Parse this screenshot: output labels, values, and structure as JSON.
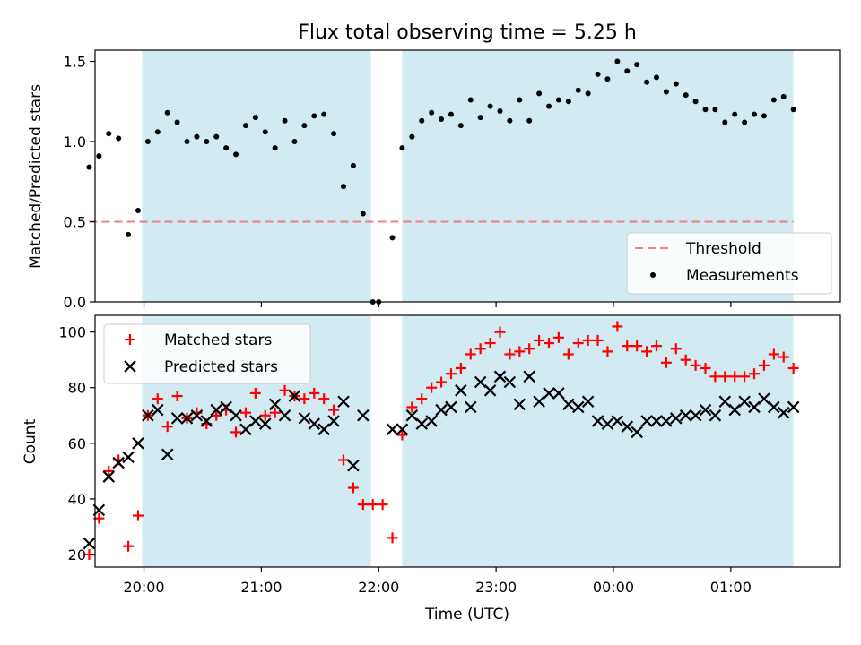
{
  "chart_data": [
    {
      "type": "scatter",
      "title": "Flux total observing time = 5.25 h",
      "xlabel": "",
      "ylabel": "Matched/Predicted stars",
      "ylim": [
        0,
        1.57
      ],
      "yticks": [
        "0.0",
        "0.5",
        "1.0",
        "1.5"
      ],
      "ytick_values": [
        0,
        0.5,
        1.0,
        1.5
      ],
      "xlim": [
        "19:35",
        "01:56"
      ],
      "legend_position": "lower-right",
      "shaded_regions": [
        [
          "19:59",
          "21:56"
        ],
        [
          "22:12",
          "01:32"
        ]
      ],
      "shade_color": "#add8e6",
      "threshold": {
        "name": "Threshold",
        "value": 0.5,
        "x": [
          "19:32",
          "01:32"
        ],
        "color": "#f08080"
      },
      "series": [
        {
          "name": "Measurements",
          "color": "#000000",
          "points": [
            [
              "19:32",
              0.84
            ],
            [
              "19:37",
              0.91
            ],
            [
              "19:42",
              1.05
            ],
            [
              "19:47",
              1.02
            ],
            [
              "19:52",
              0.42
            ],
            [
              "19:57",
              0.57
            ],
            [
              "20:02",
              1.0
            ],
            [
              "20:07",
              1.06
            ],
            [
              "20:12",
              1.18
            ],
            [
              "20:17",
              1.12
            ],
            [
              "20:22",
              1.0
            ],
            [
              "20:27",
              1.03
            ],
            [
              "20:32",
              1.0
            ],
            [
              "20:37",
              1.03
            ],
            [
              "20:42",
              0.96
            ],
            [
              "20:47",
              0.92
            ],
            [
              "20:52",
              1.1
            ],
            [
              "20:57",
              1.15
            ],
            [
              "21:02",
              1.06
            ],
            [
              "21:07",
              0.96
            ],
            [
              "21:12",
              1.13
            ],
            [
              "21:17",
              1.0
            ],
            [
              "21:22",
              1.1
            ],
            [
              "21:27",
              1.16
            ],
            [
              "21:32",
              1.17
            ],
            [
              "21:37",
              1.05
            ],
            [
              "21:42",
              0.72
            ],
            [
              "21:47",
              0.85
            ],
            [
              "21:52",
              0.55
            ],
            [
              "21:57",
              0.0
            ],
            [
              "22:00",
              0.0
            ],
            [
              "22:07",
              0.4
            ],
            [
              "22:12",
              0.96
            ],
            [
              "22:17",
              1.03
            ],
            [
              "22:22",
              1.13
            ],
            [
              "22:27",
              1.18
            ],
            [
              "22:32",
              1.14
            ],
            [
              "22:37",
              1.17
            ],
            [
              "22:42",
              1.1
            ],
            [
              "22:47",
              1.26
            ],
            [
              "22:52",
              1.15
            ],
            [
              "22:57",
              1.22
            ],
            [
              "23:02",
              1.19
            ],
            [
              "23:07",
              1.13
            ],
            [
              "23:12",
              1.26
            ],
            [
              "23:17",
              1.13
            ],
            [
              "23:22",
              1.3
            ],
            [
              "23:27",
              1.22
            ],
            [
              "23:32",
              1.26
            ],
            [
              "23:37",
              1.25
            ],
            [
              "23:42",
              1.32
            ],
            [
              "23:47",
              1.3
            ],
            [
              "23:52",
              1.42
            ],
            [
              "23:57",
              1.39
            ],
            [
              "00:02",
              1.5
            ],
            [
              "00:07",
              1.44
            ],
            [
              "00:12",
              1.48
            ],
            [
              "00:17",
              1.37
            ],
            [
              "00:22",
              1.4
            ],
            [
              "00:27",
              1.31
            ],
            [
              "00:32",
              1.36
            ],
            [
              "00:37",
              1.29
            ],
            [
              "00:42",
              1.25
            ],
            [
              "00:47",
              1.2
            ],
            [
              "00:52",
              1.2
            ],
            [
              "00:57",
              1.12
            ],
            [
              "01:02",
              1.17
            ],
            [
              "01:07",
              1.12
            ],
            [
              "01:12",
              1.17
            ],
            [
              "01:17",
              1.16
            ],
            [
              "01:22",
              1.26
            ],
            [
              "01:27",
              1.28
            ],
            [
              "01:32",
              1.2
            ]
          ]
        }
      ]
    },
    {
      "type": "scatter",
      "title": "",
      "xlabel": "Time (UTC)",
      "ylabel": "Count",
      "ylim": [
        15.5,
        106
      ],
      "yticks": [
        "20",
        "40",
        "60",
        "80",
        "100"
      ],
      "ytick_values": [
        20,
        40,
        60,
        80,
        100
      ],
      "xlim": [
        "19:35",
        "01:56"
      ],
      "xticks": [
        "20:00",
        "21:00",
        "22:00",
        "23:00",
        "00:00",
        "01:00"
      ],
      "legend_position": "upper-left",
      "shaded_regions": [
        [
          "19:59",
          "21:56"
        ],
        [
          "22:12",
          "01:32"
        ]
      ],
      "shade_color": "#add8e6",
      "series": [
        {
          "name": "Matched stars",
          "marker": "plus",
          "color": "#ff0000",
          "points": [
            [
              "19:32",
              20
            ],
            [
              "19:37",
              33
            ],
            [
              "19:42",
              50
            ],
            [
              "19:47",
              54
            ],
            [
              "19:52",
              23
            ],
            [
              "19:57",
              34
            ],
            [
              "20:02",
              70
            ],
            [
              "20:07",
              76
            ],
            [
              "20:12",
              66
            ],
            [
              "20:17",
              77
            ],
            [
              "20:22",
              69
            ],
            [
              "20:27",
              71
            ],
            [
              "20:32",
              67
            ],
            [
              "20:37",
              70
            ],
            [
              "20:42",
              72
            ],
            [
              "20:47",
              64
            ],
            [
              "20:52",
              71
            ],
            [
              "20:57",
              78
            ],
            [
              "21:02",
              70
            ],
            [
              "21:07",
              71
            ],
            [
              "21:12",
              79
            ],
            [
              "21:17",
              77
            ],
            [
              "21:22",
              76
            ],
            [
              "21:27",
              78
            ],
            [
              "21:32",
              76
            ],
            [
              "21:37",
              72
            ],
            [
              "21:42",
              54
            ],
            [
              "21:47",
              44
            ],
            [
              "21:52",
              38
            ],
            [
              "21:57",
              38
            ],
            [
              "22:02",
              38
            ],
            [
              "22:07",
              26
            ],
            [
              "22:12",
              63
            ],
            [
              "22:17",
              73
            ],
            [
              "22:22",
              76
            ],
            [
              "22:27",
              80
            ],
            [
              "22:32",
              82
            ],
            [
              "22:37",
              85
            ],
            [
              "22:42",
              87
            ],
            [
              "22:47",
              92
            ],
            [
              "22:52",
              94
            ],
            [
              "22:57",
              96
            ],
            [
              "23:02",
              100
            ],
            [
              "23:07",
              92
            ],
            [
              "23:12",
              93
            ],
            [
              "23:17",
              94
            ],
            [
              "23:22",
              97
            ],
            [
              "23:27",
              96
            ],
            [
              "23:32",
              98
            ],
            [
              "23:37",
              92
            ],
            [
              "23:42",
              96
            ],
            [
              "23:47",
              97
            ],
            [
              "23:52",
              97
            ],
            [
              "23:57",
              93
            ],
            [
              "00:02",
              102
            ],
            [
              "00:07",
              95
            ],
            [
              "00:12",
              95
            ],
            [
              "00:17",
              93
            ],
            [
              "00:22",
              95
            ],
            [
              "00:27",
              89
            ],
            [
              "00:32",
              94
            ],
            [
              "00:37",
              90
            ],
            [
              "00:42",
              88
            ],
            [
              "00:47",
              87
            ],
            [
              "00:52",
              84
            ],
            [
              "00:57",
              84
            ],
            [
              "01:02",
              84
            ],
            [
              "01:07",
              84
            ],
            [
              "01:12",
              85
            ],
            [
              "01:17",
              88
            ],
            [
              "01:22",
              92
            ],
            [
              "01:27",
              91
            ],
            [
              "01:32",
              87
            ]
          ]
        },
        {
          "name": "Predicted stars",
          "marker": "x",
          "color": "#000000",
          "points": [
            [
              "19:32",
              24
            ],
            [
              "19:37",
              36
            ],
            [
              "19:42",
              48
            ],
            [
              "19:47",
              53
            ],
            [
              "19:52",
              55
            ],
            [
              "19:57",
              60
            ],
            [
              "20:02",
              70
            ],
            [
              "20:07",
              72
            ],
            [
              "20:12",
              56
            ],
            [
              "20:17",
              69
            ],
            [
              "20:22",
              69
            ],
            [
              "20:27",
              70
            ],
            [
              "20:32",
              68
            ],
            [
              "20:37",
              72
            ],
            [
              "20:42",
              73
            ],
            [
              "20:47",
              70
            ],
            [
              "20:52",
              65
            ],
            [
              "20:57",
              68
            ],
            [
              "21:02",
              67
            ],
            [
              "21:07",
              74
            ],
            [
              "21:12",
              70
            ],
            [
              "21:17",
              77
            ],
            [
              "21:22",
              69
            ],
            [
              "21:27",
              67
            ],
            [
              "21:32",
              65
            ],
            [
              "21:37",
              68
            ],
            [
              "21:42",
              75
            ],
            [
              "21:47",
              52
            ],
            [
              "21:52",
              70
            ],
            [
              "22:07",
              65
            ],
            [
              "22:12",
              65
            ],
            [
              "22:17",
              70
            ],
            [
              "22:22",
              67
            ],
            [
              "22:27",
              68
            ],
            [
              "22:32",
              72
            ],
            [
              "22:37",
              73
            ],
            [
              "22:42",
              79
            ],
            [
              "22:47",
              73
            ],
            [
              "22:52",
              82
            ],
            [
              "22:57",
              79
            ],
            [
              "23:02",
              84
            ],
            [
              "23:07",
              82
            ],
            [
              "23:12",
              74
            ],
            [
              "23:17",
              84
            ],
            [
              "23:22",
              75
            ],
            [
              "23:27",
              78
            ],
            [
              "23:32",
              78
            ],
            [
              "23:37",
              74
            ],
            [
              "23:42",
              73
            ],
            [
              "23:47",
              75
            ],
            [
              "23:52",
              68
            ],
            [
              "23:57",
              67
            ],
            [
              "00:02",
              68
            ],
            [
              "00:07",
              66
            ],
            [
              "00:12",
              64
            ],
            [
              "00:17",
              68
            ],
            [
              "00:22",
              68
            ],
            [
              "00:27",
              68
            ],
            [
              "00:32",
              69
            ],
            [
              "00:37",
              70
            ],
            [
              "00:42",
              70
            ],
            [
              "00:47",
              72
            ],
            [
              "00:52",
              70
            ],
            [
              "00:57",
              75
            ],
            [
              "01:02",
              72
            ],
            [
              "01:07",
              75
            ],
            [
              "01:12",
              73
            ],
            [
              "01:17",
              76
            ],
            [
              "01:22",
              73
            ],
            [
              "01:27",
              71
            ],
            [
              "01:32",
              73
            ]
          ]
        }
      ]
    }
  ]
}
